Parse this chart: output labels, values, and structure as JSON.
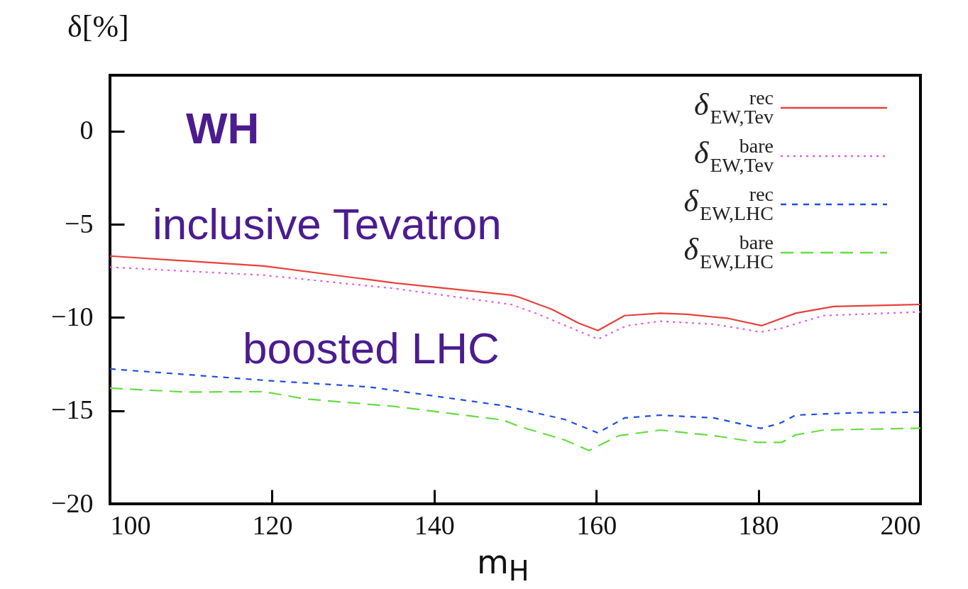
{
  "chart_data": {
    "type": "line",
    "xlabel": "m$_{H}$",
    "ylabel": "δ[%]",
    "annotations": [
      "WH",
      "inclusive Tevatron",
      "boosted LHC"
    ],
    "xlim": [
      100,
      200
    ],
    "ylim": [
      -20,
      3
    ],
    "xticks": [
      100,
      120,
      140,
      160,
      180,
      200
    ],
    "yticks": [
      -20,
      -15,
      -10,
      -5,
      0
    ],
    "legend": "top right",
    "series": [
      {
        "name": "δ$^{rec}$$_{EW,Tev}$",
        "color": "#e8413c",
        "line_style": "solid",
        "x": [
          100,
          119,
          135.2,
          149.5,
          150.4,
          154.5,
          157.8,
          160.2,
          163.5,
          167.9,
          171.2,
          176.3,
          180.4,
          184.6,
          189.3,
          200
        ],
        "values": [
          -6.7,
          -7.24,
          -8.15,
          -8.8,
          -8.9,
          -9.56,
          -10.3,
          -10.7,
          -9.9,
          -9.77,
          -9.83,
          -10.05,
          -10.44,
          -9.77,
          -9.41,
          -9.3
        ]
      },
      {
        "name": "δ$^{bare}$$_{EW,Tev}$",
        "color": "#e65ce6",
        "line_style": "dotted",
        "x": [
          100,
          119,
          135.2,
          149.5,
          152.7,
          160.2,
          163.8,
          167.9,
          174.5,
          180.3,
          182.9,
          188,
          200
        ],
        "values": [
          -7.3,
          -7.73,
          -8.45,
          -9.3,
          -9.8,
          -11.16,
          -10.44,
          -10.2,
          -10.36,
          -10.78,
          -10.57,
          -9.9,
          -9.7
        ]
      },
      {
        "name": "δ$^{rec}$$_{EW,LHC}$",
        "color": "#1f4fe0",
        "line_style": "dashed",
        "x": [
          100,
          119,
          132,
          148.7,
          156.1,
          160.2,
          163.5,
          167.9,
          174.5,
          180.3,
          182.6,
          184.6,
          191.3,
          200
        ],
        "values": [
          -12.76,
          -13.37,
          -13.73,
          -14.74,
          -15.47,
          -16.19,
          -15.39,
          -15.24,
          -15.39,
          -15.95,
          -15.69,
          -15.24,
          -15.12,
          -15.08
        ]
      },
      {
        "name": "δ$^{bare}$$_{EW,LHC}$",
        "color": "#66dd44",
        "line_style": "long-dashed",
        "x": [
          100,
          109.3,
          119,
          123.9,
          135.2,
          148.5,
          150.4,
          156.1,
          159.1,
          162.8,
          167.9,
          174.5,
          179.9,
          182.9,
          184.6,
          188,
          200
        ],
        "values": [
          -13.79,
          -14.0,
          -13.98,
          -14.36,
          -14.78,
          -15.5,
          -15.83,
          -16.57,
          -17.14,
          -16.34,
          -16.04,
          -16.34,
          -16.7,
          -16.7,
          -16.3,
          -16.04,
          -15.94
        ]
      }
    ]
  }
}
